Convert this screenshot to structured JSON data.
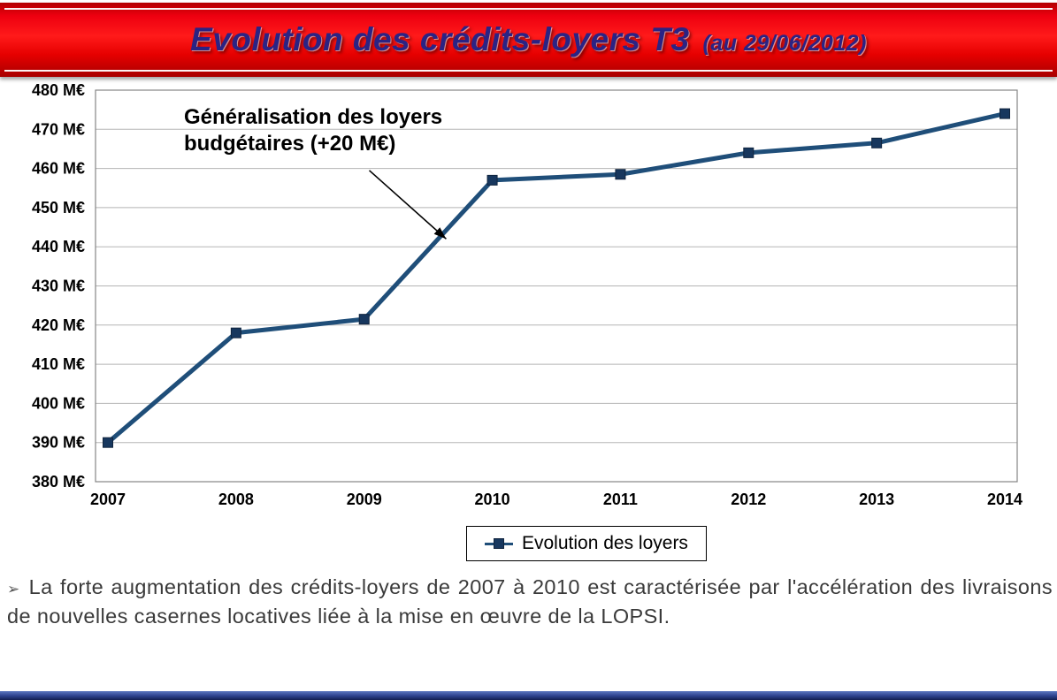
{
  "header": {
    "title": "Evolution des crédits-loyers T3",
    "subtitle": "(au 29/06/2012)"
  },
  "colors": {
    "banner_red": "#ee0010",
    "title_blue": "#2b2384",
    "line_blue": "#1f4e79",
    "marker_navy": "#17375e"
  },
  "chart_data": {
    "type": "line",
    "title": "",
    "categories": [
      "2007",
      "2008",
      "2009",
      "2010",
      "2011",
      "2012",
      "2013",
      "2014"
    ],
    "series": [
      {
        "name": "Evolution des loyers",
        "values": [
          390,
          418,
          421.5,
          457,
          458.5,
          464,
          466.5,
          474
        ]
      }
    ],
    "xlabel": "",
    "ylabel": "",
    "ylim": [
      380,
      480
    ],
    "ytick_step": 10,
    "ytick_suffix": " M€",
    "grid": true,
    "legend_position": "bottom",
    "line_color": "#1f4e79",
    "marker_color": "#17375e",
    "annotation": {
      "line1": "Généralisation des loyers",
      "line2": "budgétaires (+20 M€)",
      "arrow": {
        "from_index": 2.04,
        "from_value": 459.5,
        "to_index": 2.64,
        "to_value": 442
      }
    }
  },
  "footer": {
    "bullet": "➢",
    "text": "La forte augmentation des crédits-loyers de 2007 à 2010 est caractérisée par l'accélération des livraisons de nouvelles casernes locatives liée à la mise en œuvre de la LOPSI."
  }
}
